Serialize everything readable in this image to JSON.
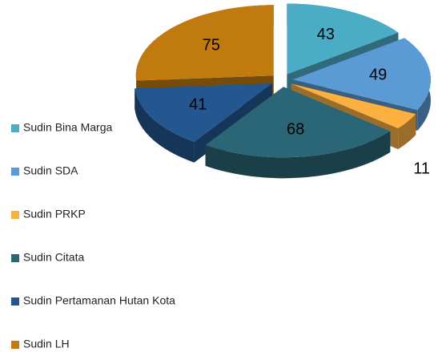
{
  "chart_data": {
    "type": "pie3d",
    "categories": [
      "Sudin Bina Marga",
      "Sudin SDA",
      "Sudin PRKP",
      "Sudin Citata",
      "Sudin Pertamanan Hutan Kota",
      "Sudin LH"
    ],
    "values": [
      43,
      49,
      11,
      68,
      41,
      75
    ],
    "colors": [
      "#4bacc6",
      "#5b9bd5",
      "#fbb040",
      "#2a6676",
      "#24578f",
      "#c07a0e"
    ],
    "legend": "left"
  }
}
